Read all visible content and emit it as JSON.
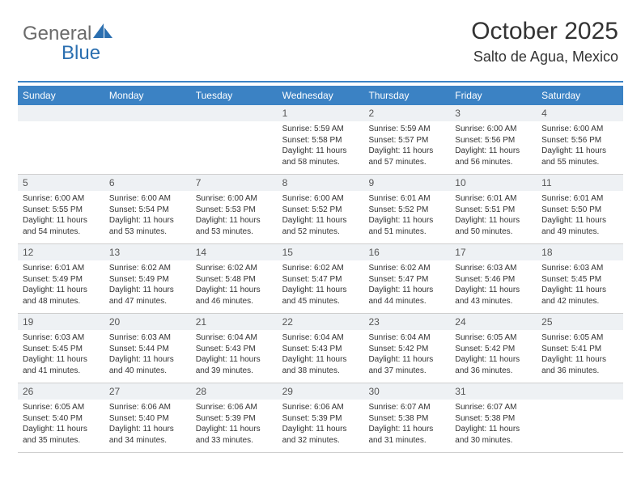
{
  "logo": {
    "text_gray": "General",
    "text_blue": "Blue"
  },
  "header": {
    "title": "October 2025",
    "location": "Salto de Agua, Mexico"
  },
  "colors": {
    "header_bg": "#3b82c4",
    "daynum_bg": "#eef1f4",
    "rule": "#3b82c4",
    "logo_gray": "#6b6b6b",
    "logo_blue": "#2b6fb0"
  },
  "weekdays": [
    "Sunday",
    "Monday",
    "Tuesday",
    "Wednesday",
    "Thursday",
    "Friday",
    "Saturday"
  ],
  "weeks": [
    [
      {
        "empty": true
      },
      {
        "empty": true
      },
      {
        "empty": true
      },
      {
        "day": "1",
        "sunrise": "Sunrise: 5:59 AM",
        "sunset": "Sunset: 5:58 PM",
        "daylight1": "Daylight: 11 hours",
        "daylight2": "and 58 minutes."
      },
      {
        "day": "2",
        "sunrise": "Sunrise: 5:59 AM",
        "sunset": "Sunset: 5:57 PM",
        "daylight1": "Daylight: 11 hours",
        "daylight2": "and 57 minutes."
      },
      {
        "day": "3",
        "sunrise": "Sunrise: 6:00 AM",
        "sunset": "Sunset: 5:56 PM",
        "daylight1": "Daylight: 11 hours",
        "daylight2": "and 56 minutes."
      },
      {
        "day": "4",
        "sunrise": "Sunrise: 6:00 AM",
        "sunset": "Sunset: 5:56 PM",
        "daylight1": "Daylight: 11 hours",
        "daylight2": "and 55 minutes."
      }
    ],
    [
      {
        "day": "5",
        "sunrise": "Sunrise: 6:00 AM",
        "sunset": "Sunset: 5:55 PM",
        "daylight1": "Daylight: 11 hours",
        "daylight2": "and 54 minutes."
      },
      {
        "day": "6",
        "sunrise": "Sunrise: 6:00 AM",
        "sunset": "Sunset: 5:54 PM",
        "daylight1": "Daylight: 11 hours",
        "daylight2": "and 53 minutes."
      },
      {
        "day": "7",
        "sunrise": "Sunrise: 6:00 AM",
        "sunset": "Sunset: 5:53 PM",
        "daylight1": "Daylight: 11 hours",
        "daylight2": "and 53 minutes."
      },
      {
        "day": "8",
        "sunrise": "Sunrise: 6:00 AM",
        "sunset": "Sunset: 5:52 PM",
        "daylight1": "Daylight: 11 hours",
        "daylight2": "and 52 minutes."
      },
      {
        "day": "9",
        "sunrise": "Sunrise: 6:01 AM",
        "sunset": "Sunset: 5:52 PM",
        "daylight1": "Daylight: 11 hours",
        "daylight2": "and 51 minutes."
      },
      {
        "day": "10",
        "sunrise": "Sunrise: 6:01 AM",
        "sunset": "Sunset: 5:51 PM",
        "daylight1": "Daylight: 11 hours",
        "daylight2": "and 50 minutes."
      },
      {
        "day": "11",
        "sunrise": "Sunrise: 6:01 AM",
        "sunset": "Sunset: 5:50 PM",
        "daylight1": "Daylight: 11 hours",
        "daylight2": "and 49 minutes."
      }
    ],
    [
      {
        "day": "12",
        "sunrise": "Sunrise: 6:01 AM",
        "sunset": "Sunset: 5:49 PM",
        "daylight1": "Daylight: 11 hours",
        "daylight2": "and 48 minutes."
      },
      {
        "day": "13",
        "sunrise": "Sunrise: 6:02 AM",
        "sunset": "Sunset: 5:49 PM",
        "daylight1": "Daylight: 11 hours",
        "daylight2": "and 47 minutes."
      },
      {
        "day": "14",
        "sunrise": "Sunrise: 6:02 AM",
        "sunset": "Sunset: 5:48 PM",
        "daylight1": "Daylight: 11 hours",
        "daylight2": "and 46 minutes."
      },
      {
        "day": "15",
        "sunrise": "Sunrise: 6:02 AM",
        "sunset": "Sunset: 5:47 PM",
        "daylight1": "Daylight: 11 hours",
        "daylight2": "and 45 minutes."
      },
      {
        "day": "16",
        "sunrise": "Sunrise: 6:02 AM",
        "sunset": "Sunset: 5:47 PM",
        "daylight1": "Daylight: 11 hours",
        "daylight2": "and 44 minutes."
      },
      {
        "day": "17",
        "sunrise": "Sunrise: 6:03 AM",
        "sunset": "Sunset: 5:46 PM",
        "daylight1": "Daylight: 11 hours",
        "daylight2": "and 43 minutes."
      },
      {
        "day": "18",
        "sunrise": "Sunrise: 6:03 AM",
        "sunset": "Sunset: 5:45 PM",
        "daylight1": "Daylight: 11 hours",
        "daylight2": "and 42 minutes."
      }
    ],
    [
      {
        "day": "19",
        "sunrise": "Sunrise: 6:03 AM",
        "sunset": "Sunset: 5:45 PM",
        "daylight1": "Daylight: 11 hours",
        "daylight2": "and 41 minutes."
      },
      {
        "day": "20",
        "sunrise": "Sunrise: 6:03 AM",
        "sunset": "Sunset: 5:44 PM",
        "daylight1": "Daylight: 11 hours",
        "daylight2": "and 40 minutes."
      },
      {
        "day": "21",
        "sunrise": "Sunrise: 6:04 AM",
        "sunset": "Sunset: 5:43 PM",
        "daylight1": "Daylight: 11 hours",
        "daylight2": "and 39 minutes."
      },
      {
        "day": "22",
        "sunrise": "Sunrise: 6:04 AM",
        "sunset": "Sunset: 5:43 PM",
        "daylight1": "Daylight: 11 hours",
        "daylight2": "and 38 minutes."
      },
      {
        "day": "23",
        "sunrise": "Sunrise: 6:04 AM",
        "sunset": "Sunset: 5:42 PM",
        "daylight1": "Daylight: 11 hours",
        "daylight2": "and 37 minutes."
      },
      {
        "day": "24",
        "sunrise": "Sunrise: 6:05 AM",
        "sunset": "Sunset: 5:42 PM",
        "daylight1": "Daylight: 11 hours",
        "daylight2": "and 36 minutes."
      },
      {
        "day": "25",
        "sunrise": "Sunrise: 6:05 AM",
        "sunset": "Sunset: 5:41 PM",
        "daylight1": "Daylight: 11 hours",
        "daylight2": "and 36 minutes."
      }
    ],
    [
      {
        "day": "26",
        "sunrise": "Sunrise: 6:05 AM",
        "sunset": "Sunset: 5:40 PM",
        "daylight1": "Daylight: 11 hours",
        "daylight2": "and 35 minutes."
      },
      {
        "day": "27",
        "sunrise": "Sunrise: 6:06 AM",
        "sunset": "Sunset: 5:40 PM",
        "daylight1": "Daylight: 11 hours",
        "daylight2": "and 34 minutes."
      },
      {
        "day": "28",
        "sunrise": "Sunrise: 6:06 AM",
        "sunset": "Sunset: 5:39 PM",
        "daylight1": "Daylight: 11 hours",
        "daylight2": "and 33 minutes."
      },
      {
        "day": "29",
        "sunrise": "Sunrise: 6:06 AM",
        "sunset": "Sunset: 5:39 PM",
        "daylight1": "Daylight: 11 hours",
        "daylight2": "and 32 minutes."
      },
      {
        "day": "30",
        "sunrise": "Sunrise: 6:07 AM",
        "sunset": "Sunset: 5:38 PM",
        "daylight1": "Daylight: 11 hours",
        "daylight2": "and 31 minutes."
      },
      {
        "day": "31",
        "sunrise": "Sunrise: 6:07 AM",
        "sunset": "Sunset: 5:38 PM",
        "daylight1": "Daylight: 11 hours",
        "daylight2": "and 30 minutes."
      },
      {
        "empty": true
      }
    ]
  ]
}
